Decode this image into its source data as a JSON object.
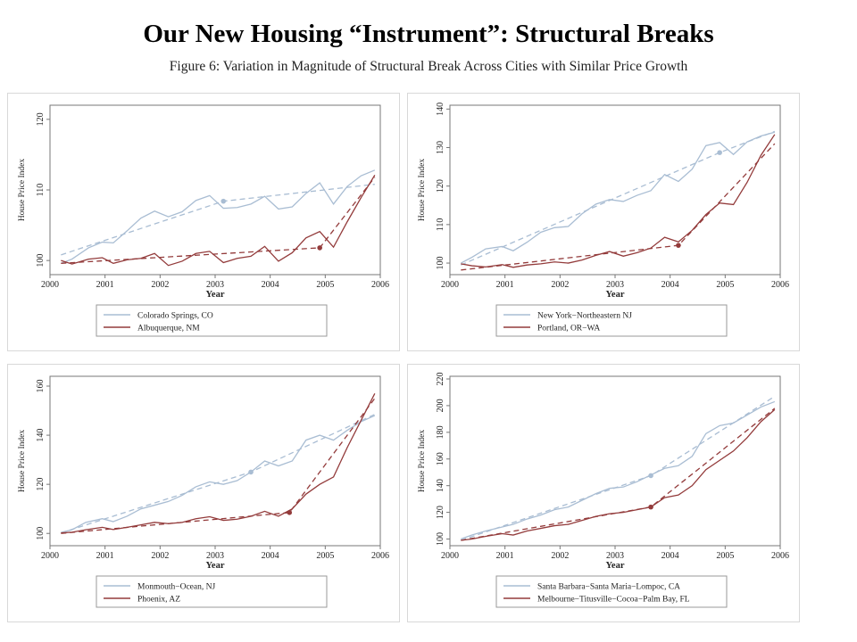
{
  "slide_title": "Our New Housing “Instrument”:  Structural Breaks",
  "figure_caption": "Figure 6: Variation in Magnitude of Structural Break Across Cities with Similar Price Growth",
  "colors": {
    "series_a": "#a9bdd3",
    "series_b": "#933b3b",
    "plot_border": "#777777",
    "panel_frame": "#d8d8d8"
  },
  "chart_data": [
    {
      "type": "line",
      "xlabel": "Year",
      "ylabel": "House Price Index",
      "xlim": [
        2000,
        2006
      ],
      "ylim": [
        98,
        122
      ],
      "xticks": [
        "2000",
        "2001",
        "2002",
        "2003",
        "2004",
        "2005",
        "2006"
      ],
      "yticks": [
        100,
        110,
        120
      ],
      "series": [
        {
          "name": "Colorado Springs, CO",
          "x": [
            2000.2,
            2000.4,
            2000.7,
            2000.95,
            2001.15,
            2001.4,
            2001.65,
            2001.9,
            2002.15,
            2002.4,
            2002.65,
            2002.9,
            2003.15,
            2003.4,
            2003.65,
            2003.9,
            2004.15,
            2004.4,
            2004.65,
            2004.9,
            2005.15,
            2005.4,
            2005.65,
            2005.9
          ],
          "y": [
            99.6,
            100.2,
            101.8,
            102.6,
            102.5,
            104.2,
            106.0,
            107.0,
            106.2,
            106.9,
            108.5,
            109.2,
            107.4,
            107.5,
            108.0,
            109.1,
            107.3,
            107.6,
            109.5,
            111.0,
            108.0,
            110.5,
            112.0,
            112.8
          ],
          "trend": [
            [
              2000.2,
              100.8
            ],
            [
              2003.15,
              108.4
            ],
            [
              2005.9,
              110.8
            ]
          ],
          "break": [
            2003.15,
            108.4
          ]
        },
        {
          "name": "Albuquerque, NM",
          "x": [
            2000.2,
            2000.4,
            2000.7,
            2000.95,
            2001.15,
            2001.4,
            2001.65,
            2001.9,
            2002.15,
            2002.4,
            2002.65,
            2002.9,
            2003.15,
            2003.4,
            2003.65,
            2003.9,
            2004.15,
            2004.4,
            2004.65,
            2004.9,
            2005.15,
            2005.4,
            2005.65,
            2005.9
          ],
          "y": [
            100.0,
            99.5,
            100.2,
            100.4,
            99.6,
            100.1,
            100.3,
            101.0,
            99.3,
            99.9,
            101.0,
            101.3,
            99.7,
            100.3,
            100.6,
            102.0,
            99.9,
            101.1,
            103.2,
            104.1,
            101.9,
            105.5,
            108.9,
            112.1
          ],
          "trend": [
            [
              2000.2,
              99.6
            ],
            [
              2004.9,
              101.8
            ],
            [
              2005.9,
              111.8
            ]
          ],
          "break": [
            2004.9,
            101.8
          ]
        }
      ]
    },
    {
      "type": "line",
      "xlabel": "Year",
      "ylabel": "House Price Index",
      "xlim": [
        2000,
        2006
      ],
      "ylim": [
        97,
        141
      ],
      "xticks": [
        "2000",
        "2001",
        "2002",
        "2003",
        "2004",
        "2005",
        "2006"
      ],
      "yticks": [
        100,
        110,
        120,
        130,
        140
      ],
      "series": [
        {
          "name": "New York−Northeastern NJ",
          "x": [
            2000.2,
            2000.4,
            2000.65,
            2000.95,
            2001.15,
            2001.4,
            2001.65,
            2001.9,
            2002.15,
            2002.4,
            2002.65,
            2002.9,
            2003.15,
            2003.4,
            2003.65,
            2003.9,
            2004.15,
            2004.4,
            2004.65,
            2004.9,
            2005.15,
            2005.4,
            2005.65,
            2005.9
          ],
          "y": [
            100,
            101.5,
            103.7,
            104.3,
            103.2,
            105.4,
            108.0,
            109.2,
            109.5,
            112.8,
            115.3,
            116.5,
            116.0,
            117.6,
            118.8,
            123.0,
            121.2,
            124.4,
            130.5,
            131.3,
            128.2,
            131.5,
            133.0,
            134.0
          ],
          "trend": [
            [
              2000.2,
              99.5
            ],
            [
              2004.9,
              128.7
            ],
            [
              2005.9,
              134.2
            ]
          ],
          "break": [
            2004.9,
            128.7
          ]
        },
        {
          "name": "Portland, OR−WA",
          "x": [
            2000.2,
            2000.4,
            2000.65,
            2000.95,
            2001.15,
            2001.4,
            2001.65,
            2001.9,
            2002.15,
            2002.4,
            2002.65,
            2002.9,
            2003.15,
            2003.4,
            2003.65,
            2003.9,
            2004.15,
            2004.4,
            2004.65,
            2004.9,
            2005.15,
            2005.4,
            2005.65,
            2005.9
          ],
          "y": [
            99.8,
            99.3,
            99.0,
            99.6,
            98.9,
            99.5,
            99.8,
            100.3,
            100.0,
            100.8,
            102.0,
            103.0,
            101.8,
            102.7,
            103.9,
            106.7,
            105.5,
            108.5,
            112.6,
            115.6,
            115.2,
            121.0,
            128.0,
            133.4
          ],
          "trend": [
            [
              2000.2,
              98.2
            ],
            [
              2004.15,
              104.6
            ],
            [
              2005.9,
              131.0
            ]
          ],
          "break": [
            2004.15,
            104.6
          ]
        }
      ]
    },
    {
      "type": "line",
      "xlabel": "Year",
      "ylabel": "House Price Index",
      "xlim": [
        2000,
        2006
      ],
      "ylim": [
        95,
        164
      ],
      "xticks": [
        "2000",
        "2001",
        "2002",
        "2003",
        "2004",
        "2005",
        "2006"
      ],
      "yticks": [
        100,
        120,
        140,
        160
      ],
      "series": [
        {
          "name": "Monmouth−Ocean, NJ",
          "x": [
            2000.2,
            2000.4,
            2000.65,
            2000.95,
            2001.15,
            2001.4,
            2001.65,
            2001.9,
            2002.15,
            2002.4,
            2002.65,
            2002.9,
            2003.15,
            2003.4,
            2003.65,
            2003.9,
            2004.15,
            2004.4,
            2004.65,
            2004.9,
            2005.15,
            2005.4,
            2005.65,
            2005.9
          ],
          "y": [
            100.4,
            101.5,
            104.5,
            106.0,
            104.8,
            107.0,
            110.0,
            111.5,
            113.0,
            115.5,
            119.0,
            121.0,
            120.0,
            121.5,
            125.0,
            129.5,
            127.5,
            129.5,
            138.0,
            140.0,
            138.0,
            142.0,
            145.5,
            148.0
          ],
          "trend": [
            [
              2000.2,
              100.2
            ],
            [
              2003.65,
              125.0
            ],
            [
              2005.9,
              148.5
            ]
          ],
          "break": [
            2003.65,
            125.0
          ]
        },
        {
          "name": "Phoenix, AZ",
          "x": [
            2000.2,
            2000.4,
            2000.65,
            2000.95,
            2001.15,
            2001.4,
            2001.65,
            2001.9,
            2002.15,
            2002.4,
            2002.65,
            2002.9,
            2003.15,
            2003.4,
            2003.65,
            2003.9,
            2004.15,
            2004.4,
            2004.65,
            2004.9,
            2005.15,
            2005.4,
            2005.65,
            2005.9
          ],
          "y": [
            100.2,
            100.5,
            101.5,
            102.5,
            101.6,
            102.5,
            103.5,
            104.5,
            104.0,
            104.5,
            106.0,
            106.8,
            105.3,
            105.8,
            107.0,
            109.0,
            107.0,
            110.0,
            116.0,
            120.0,
            123.0,
            135.0,
            146.0,
            157.0
          ],
          "trend": [
            [
              2000.2,
              100.0
            ],
            [
              2004.35,
              108.5
            ],
            [
              2005.9,
              155.0
            ]
          ],
          "break": [
            2004.35,
            108.5
          ]
        }
      ]
    },
    {
      "type": "line",
      "xlabel": "Year",
      "ylabel": "House Price Index",
      "xlim": [
        2000,
        2006
      ],
      "ylim": [
        95,
        222
      ],
      "xticks": [
        "2000",
        "2001",
        "2002",
        "2003",
        "2004",
        "2005",
        "2006"
      ],
      "yticks": [
        100,
        120,
        140,
        160,
        180,
        200,
        220
      ],
      "series": [
        {
          "name": "Santa Barbara−Santa Maria−Lompoc, CA",
          "x": [
            2000.2,
            2000.4,
            2000.65,
            2000.95,
            2001.15,
            2001.4,
            2001.65,
            2001.9,
            2002.15,
            2002.4,
            2002.65,
            2002.9,
            2003.15,
            2003.4,
            2003.65,
            2003.9,
            2004.15,
            2004.4,
            2004.65,
            2004.9,
            2005.15,
            2005.4,
            2005.65,
            2005.9
          ],
          "y": [
            100,
            103,
            106,
            109,
            111,
            115,
            118,
            122,
            124,
            129,
            134,
            138,
            139,
            143,
            148,
            153,
            155,
            162,
            179,
            185,
            187,
            193,
            199,
            203
          ],
          "trend": [
            [
              2000.2,
              99.0
            ],
            [
              2003.65,
              147.5
            ],
            [
              2005.9,
              207.0
            ]
          ],
          "break": [
            2003.65,
            147.5
          ]
        },
        {
          "name": "Melbourne−Titusville−Cocoa−Palm Bay, FL",
          "x": [
            2000.2,
            2000.4,
            2000.65,
            2000.95,
            2001.15,
            2001.4,
            2001.65,
            2001.9,
            2002.15,
            2002.4,
            2002.65,
            2002.9,
            2003.15,
            2003.4,
            2003.65,
            2003.9,
            2004.15,
            2004.4,
            2004.65,
            2004.9,
            2005.15,
            2005.4,
            2005.65,
            2005.9
          ],
          "y": [
            99,
            100,
            102,
            104,
            103,
            106,
            108,
            110,
            111,
            114,
            117,
            119,
            120,
            122,
            124,
            131,
            133,
            140,
            152,
            159,
            166,
            176,
            188,
            197
          ],
          "trend": [
            [
              2000.2,
              99.0
            ],
            [
              2003.65,
              124.0
            ],
            [
              2005.9,
              198.0
            ]
          ],
          "break": [
            2003.65,
            124.0
          ]
        }
      ]
    }
  ]
}
